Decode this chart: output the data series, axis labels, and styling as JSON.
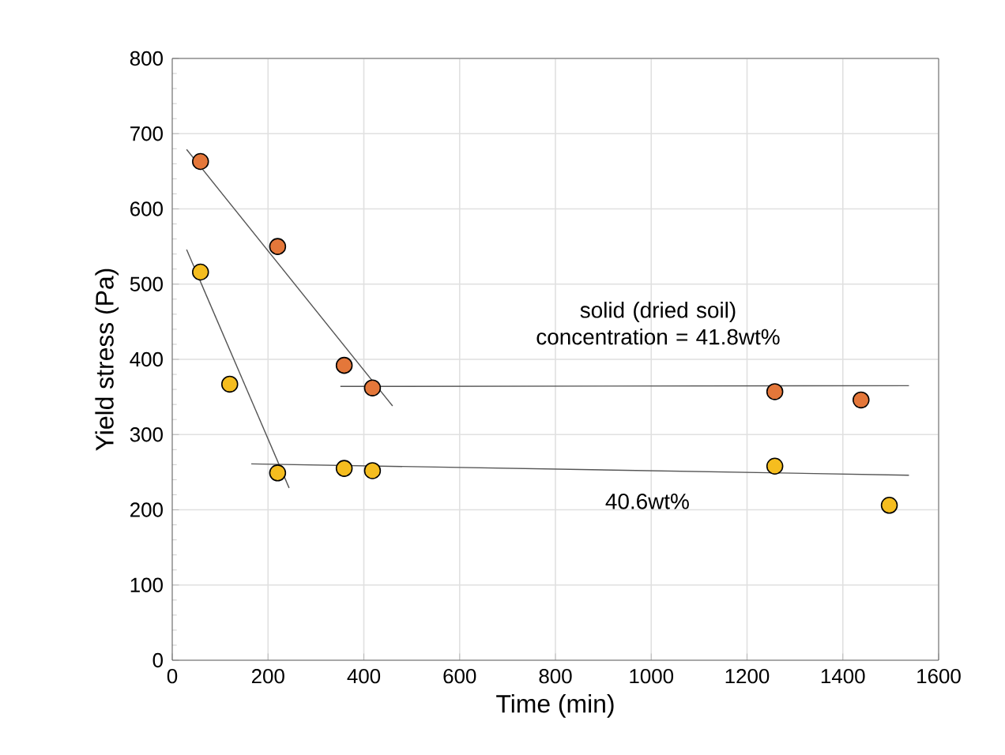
{
  "chart_data": {
    "type": "scatter",
    "xlabel": "Time (min)",
    "ylabel": "Yield stress (Pa)",
    "xlim": [
      0,
      1600
    ],
    "xticks": [
      0,
      200,
      400,
      600,
      800,
      1000,
      1200,
      1400,
      1600
    ],
    "ylim": [
      0,
      800
    ],
    "yticks": [
      0,
      100,
      200,
      300,
      400,
      500,
      600,
      700,
      800
    ],
    "grid": true,
    "series": [
      {
        "color": "#e4773a",
        "marker": "circle",
        "x": [
          59,
          220,
          359,
          418,
          1258,
          1438
        ],
        "values": [
          663,
          550,
          392,
          362,
          357,
          346
        ]
      },
      {
        "color": "#f5bd1f",
        "marker": "circle",
        "x": [
          59,
          120,
          220,
          359,
          418,
          1258,
          1497
        ],
        "values": [
          516,
          367,
          249,
          255,
          252,
          258,
          206
        ]
      },
      {
        "type": "line",
        "color": "#555555",
        "marker": "none",
        "x": [
          30,
          460
        ],
        "values": [
          679,
          338
        ]
      },
      {
        "type": "line",
        "color": "#555555",
        "marker": "none",
        "x": [
          351,
          1538
        ],
        "values": [
          364,
          365
        ]
      },
      {
        "type": "line",
        "color": "#555555",
        "marker": "none",
        "x": [
          30,
          244
        ],
        "values": [
          546,
          229
        ]
      },
      {
        "type": "line",
        "color": "#555555",
        "marker": "none",
        "x": [
          165,
          1538
        ],
        "values": [
          261,
          246
        ]
      }
    ],
    "annotations": [
      "solid (dried soil) concentration = 41.8wt%",
      "40.6wt%"
    ]
  }
}
